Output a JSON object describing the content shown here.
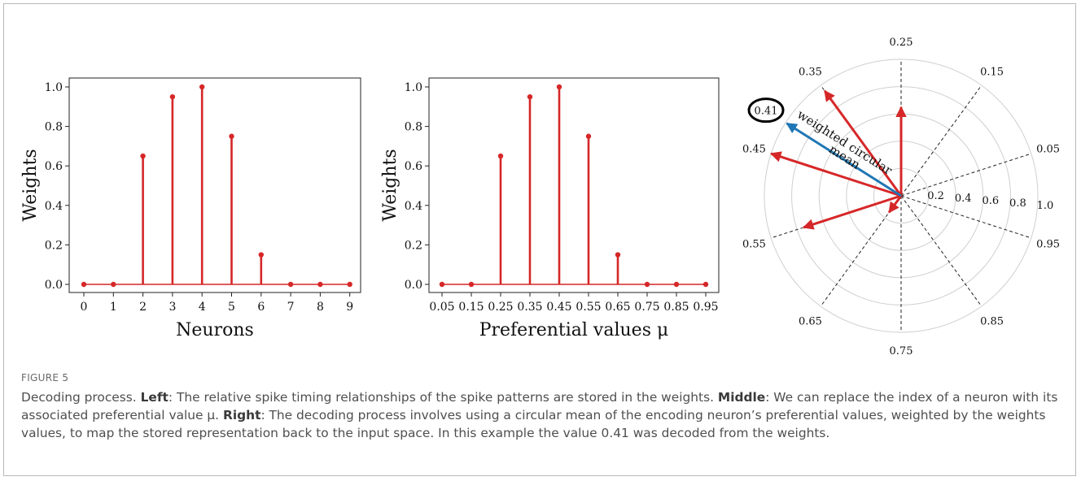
{
  "colors": {
    "series": "#d62728",
    "mean_arrow": "#1f77b4",
    "caption_text": "#4f4f4f"
  },
  "chart_data": [
    {
      "type": "stem",
      "xlabel": "Neurons",
      "ylabel": "Weights",
      "categories": [
        "0",
        "1",
        "2",
        "3",
        "4",
        "5",
        "6",
        "7",
        "8",
        "9"
      ],
      "values": [
        0,
        0,
        0.65,
        0.95,
        1.0,
        0.75,
        0.15,
        0,
        0,
        0
      ],
      "yticks": [
        "0.0",
        "0.2",
        "0.4",
        "0.6",
        "0.8",
        "1.0"
      ],
      "ylim": [
        0,
        1.0
      ]
    },
    {
      "type": "stem",
      "xlabel": "Preferential values μ",
      "ylabel": "Weights",
      "categories": [
        "0.05",
        "0.15",
        "0.25",
        "0.35",
        "0.45",
        "0.55",
        "0.65",
        "0.75",
        "0.85",
        "0.95"
      ],
      "values": [
        0,
        0,
        0.65,
        0.95,
        1.0,
        0.75,
        0.15,
        0,
        0,
        0
      ],
      "yticks": [
        "0.0",
        "0.2",
        "0.4",
        "0.6",
        "0.8",
        "1.0"
      ],
      "ylim": [
        0,
        1.0
      ]
    },
    {
      "type": "polar",
      "angle_labels": [
        "0.25",
        "0.15",
        "0.05",
        "0.95",
        "0.85",
        "0.75",
        "0.65",
        "0.55",
        "0.45",
        "0.35"
      ],
      "radial_ticks": [
        "0.2",
        "0.4",
        "0.6",
        "0.8",
        "1.0"
      ],
      "vectors": [
        {
          "value": 0.25,
          "magnitude": 0.65
        },
        {
          "value": 0.35,
          "magnitude": 0.95
        },
        {
          "value": 0.45,
          "magnitude": 1.0
        },
        {
          "value": 0.55,
          "magnitude": 0.75
        },
        {
          "value": 0.65,
          "magnitude": 0.15
        }
      ],
      "mean": {
        "value": 0.41,
        "label": "0.41",
        "arrow_label_line1": "weighted circular",
        "arrow_label_line2": "mean"
      }
    }
  ],
  "caption": {
    "figure_label": "FIGURE 5",
    "intro": "Decoding process. ",
    "left_label": "Left",
    "left_text": ": The relative spike timing relationships of the spike patterns are stored in the weights. ",
    "middle_label": "Middle",
    "middle_text": ": We can replace the index of a neuron with its associated preferential value μ. ",
    "right_label": "Right",
    "right_text": ": The decoding process involves using a circular mean of the encoding neuron’s preferential values, weighted by the weights values, to map the stored representation back to the input space. In this example the value 0.41 was decoded from the weights."
  }
}
